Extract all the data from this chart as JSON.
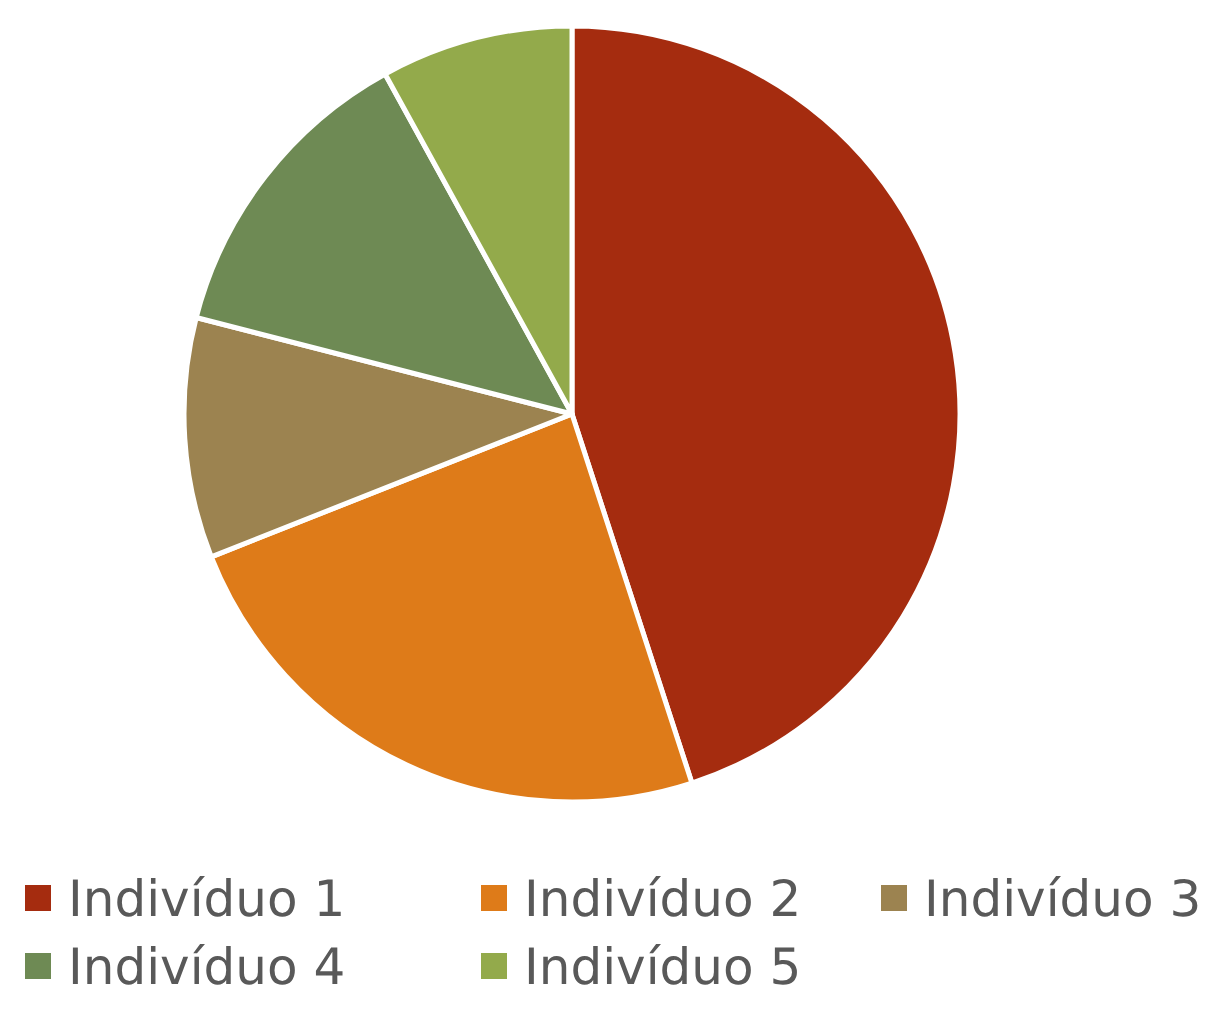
{
  "chart_data": {
    "type": "pie",
    "categories": [
      "Indivíduo 1",
      "Indivíduo 2",
      "Indivíduo 3",
      "Indivíduo 4",
      "Indivíduo 5"
    ],
    "values": [
      45,
      24,
      10,
      13,
      8
    ],
    "colors": [
      "#a52c0f",
      "#de7b19",
      "#9c8350",
      "#6e8a54",
      "#93aa4b"
    ],
    "legend": "bottom"
  }
}
